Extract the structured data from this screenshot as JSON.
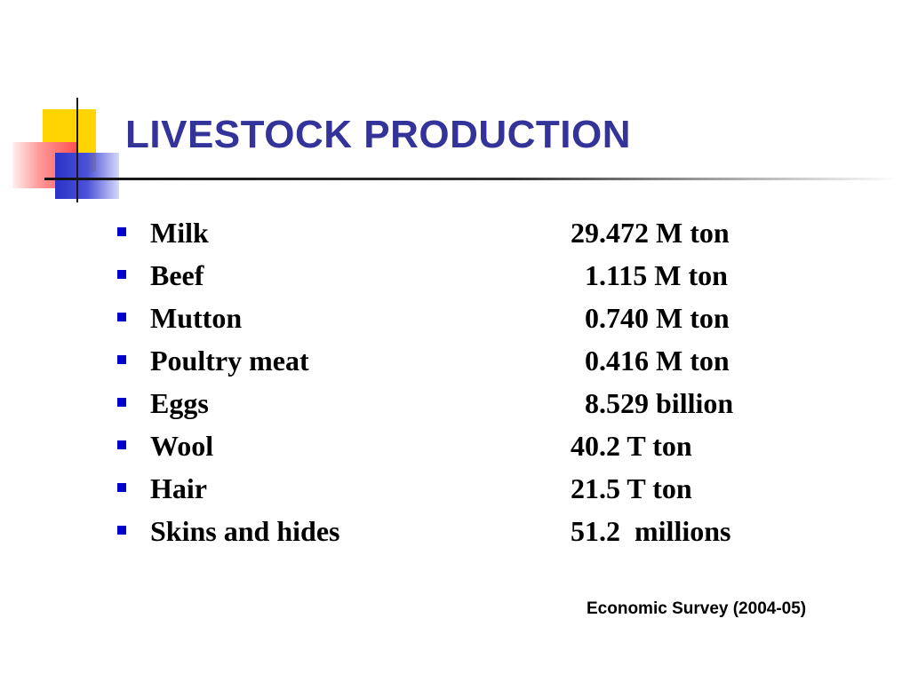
{
  "slide": {
    "title": "LIVESTOCK PRODUCTION",
    "items": [
      {
        "label": "Milk",
        "value": "29.472 M ton"
      },
      {
        "label": "Beef",
        "value": "  1.115 M ton"
      },
      {
        "label": "Mutton",
        "value": "  0.740 M ton"
      },
      {
        "label": "Poultry meat",
        "value": "  0.416 M ton"
      },
      {
        "label": "Eggs",
        "value": "  8.529 billion"
      },
      {
        "label": "Wool",
        "value": "40.2 T ton"
      },
      {
        "label": "Hair",
        "value": "21.5 T ton"
      },
      {
        "label": "Skins and hides",
        "value": "51.2  millions"
      }
    ],
    "source": "Economic Survey (2004-05)",
    "colors": {
      "title": "#333399",
      "bullet": "#0000cc",
      "accent_yellow": "#ffd400",
      "accent_red": "#ff4d4d",
      "accent_blue": "#2a32c8"
    }
  }
}
